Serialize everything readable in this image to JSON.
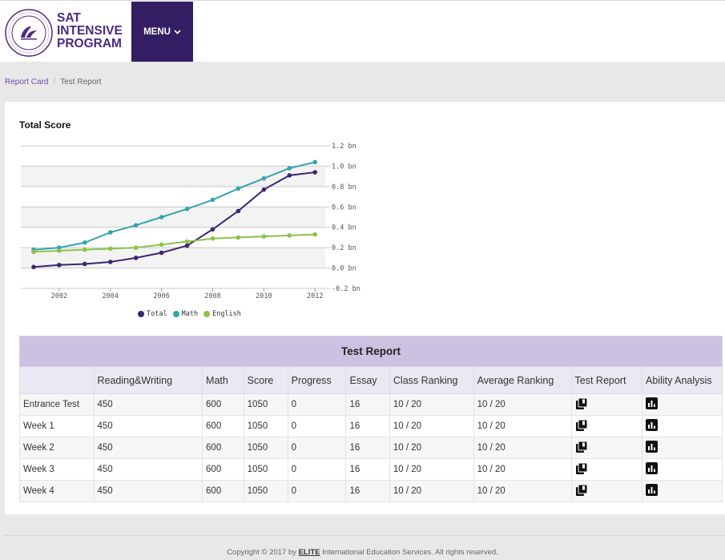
{
  "header": {
    "brand_line1": "SAT",
    "brand_line2": "INTENSIVE",
    "brand_line3": "PROGRAM",
    "menu_label": "MENU",
    "logo_icon": "elite-seal-logo",
    "menu_bg": "#341e63",
    "brand_color": "#4b2a83"
  },
  "breadcrumb": {
    "link": "Report Card",
    "current": "Test Report"
  },
  "chart_data": {
    "type": "line",
    "title": "Total Score",
    "x": [
      2001,
      2002,
      2003,
      2004,
      2005,
      2006,
      2007,
      2008,
      2009,
      2010,
      2011,
      2012
    ],
    "series": [
      {
        "name": "Total",
        "color": "#3e2570",
        "values": [
          0.01,
          0.03,
          0.04,
          0.06,
          0.1,
          0.15,
          0.22,
          0.38,
          0.56,
          0.77,
          0.91,
          0.94
        ]
      },
      {
        "name": "Math",
        "color": "#36a3ab",
        "values": [
          0.18,
          0.2,
          0.25,
          0.35,
          0.42,
          0.5,
          0.58,
          0.67,
          0.78,
          0.88,
          0.98,
          1.04
        ]
      },
      {
        "name": "English",
        "color": "#8bc34a",
        "values": [
          0.16,
          0.17,
          0.18,
          0.19,
          0.2,
          0.23,
          0.26,
          0.29,
          0.3,
          0.31,
          0.32,
          0.33
        ]
      }
    ],
    "xticks": [
      "2002",
      "2004",
      "2006",
      "2008",
      "2010",
      "2012"
    ],
    "yticks": [
      "1.2 bn",
      "1.0 bn",
      "0.8 bn",
      "0.6 bn",
      "0.4 bn",
      "0.2 bn",
      "0.0 bn",
      "-0.2 bn"
    ],
    "ylim": [
      -0.2,
      1.2
    ],
    "y_axis_side": "right",
    "grid": true,
    "legend": "bottom"
  },
  "table": {
    "title": "Test Report",
    "headers": [
      "",
      "Reading&Writing",
      "Math",
      "Score",
      "Progress",
      "Essay",
      "Class Ranking",
      "Average Ranking",
      "Test Report",
      "Ability Analysis"
    ],
    "rows": [
      [
        "Entrance Test",
        "450",
        "600",
        "1050",
        "0",
        "16",
        "10 / 20",
        "10 / 20"
      ],
      [
        "Week 1",
        "450",
        "600",
        "1050",
        "0",
        "16",
        "10 / 20",
        "10 / 20"
      ],
      [
        "Week 2",
        "450",
        "600",
        "1050",
        "0",
        "16",
        "10 / 20",
        "10 / 20"
      ],
      [
        "Week 3",
        "450",
        "600",
        "1050",
        "0",
        "16",
        "10 / 20",
        "10 / 20"
      ],
      [
        "Week 4",
        "450",
        "600",
        "1050",
        "0",
        "16",
        "10 / 20",
        "10 / 20"
      ]
    ],
    "test_report_icon": "copy-report-icon",
    "ability_icon": "bar-chart-icon"
  },
  "footer": {
    "prefix": "Copyright © 2017 by",
    "brand": "ELITE",
    "suffix": "International Education Services. All rights reserved."
  }
}
